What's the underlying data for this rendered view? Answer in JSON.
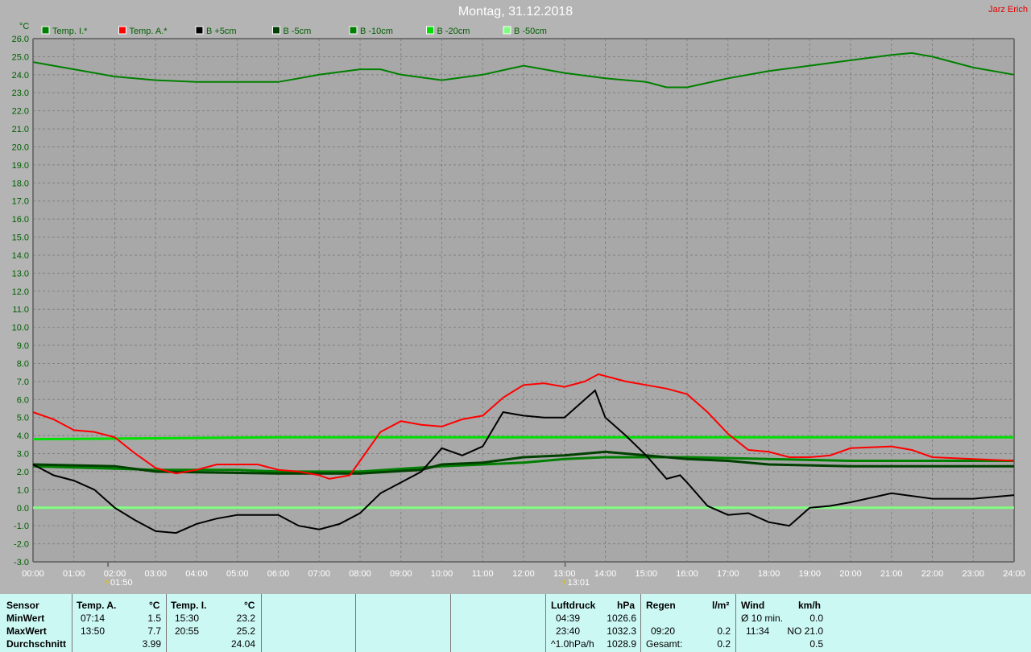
{
  "header": {
    "title": "Montag, 31.12.2018",
    "author": "Jarz Erich"
  },
  "chart_data": {
    "type": "line",
    "ylabel": "°C",
    "ylim": [
      -3,
      26
    ],
    "xlim": [
      "00:00",
      "24:00"
    ],
    "grid": true,
    "legend_position": "top",
    "yticks": [
      "26.0",
      "25.0",
      "24.0",
      "23.0",
      "22.0",
      "21.0",
      "20.0",
      "19.0",
      "18.0",
      "17.0",
      "16.0",
      "15.0",
      "14.0",
      "13.0",
      "12.0",
      "11.0",
      "10.0",
      "9.0",
      "8.0",
      "7.0",
      "6.0",
      "5.0",
      "4.0",
      "3.0",
      "2.0",
      "1.0",
      "0.0",
      "-1.0",
      "-2.0",
      "-3.0"
    ],
    "xticks": [
      "00:00",
      "01:00",
      "02:00",
      "03:00",
      "04:00",
      "05:00",
      "06:00",
      "07:00",
      "08:00",
      "09:00",
      "10:00",
      "11:00",
      "12:00",
      "13:00",
      "14:00",
      "15:00",
      "16:00",
      "17:00",
      "18:00",
      "19:00",
      "20:00",
      "21:00",
      "22:00",
      "23:00",
      "24:00"
    ],
    "markers": [
      {
        "time": "01:50",
        "label": "01:50"
      },
      {
        "time": "13:01",
        "label": "13:01"
      }
    ],
    "series": [
      {
        "name": "Temp. I.*",
        "color": "#008000",
        "x": [
          0,
          1,
          2,
          3,
          4,
          5,
          6,
          7,
          8,
          8.5,
          9,
          10,
          11,
          12,
          13,
          14,
          15,
          15.5,
          16,
          17,
          18,
          19,
          20,
          21,
          21.5,
          22,
          23,
          24
        ],
        "y": [
          24.7,
          24.3,
          23.9,
          23.7,
          23.6,
          23.6,
          23.6,
          24.0,
          24.3,
          24.3,
          24.0,
          23.7,
          24.0,
          24.5,
          24.1,
          23.8,
          23.6,
          23.3,
          23.3,
          23.8,
          24.2,
          24.5,
          24.8,
          25.1,
          25.2,
          25.0,
          24.4,
          24.0
        ]
      },
      {
        "name": "Temp. A.*",
        "color": "#ff0000",
        "x": [
          0,
          0.5,
          1,
          1.5,
          2,
          2.5,
          3,
          3.5,
          4,
          4.5,
          5,
          5.5,
          6,
          6.5,
          7,
          7.25,
          7.75,
          8,
          8.5,
          9,
          9.5,
          10,
          10.5,
          11,
          11.5,
          12,
          12.5,
          13,
          13.5,
          13.83,
          14.5,
          15,
          15.5,
          16,
          16.5,
          17,
          17.5,
          18,
          18.5,
          19,
          19.5,
          20,
          21,
          21.5,
          22,
          23,
          24
        ],
        "y": [
          5.3,
          4.9,
          4.3,
          4.2,
          3.9,
          3.0,
          2.2,
          1.9,
          2.1,
          2.4,
          2.4,
          2.4,
          2.1,
          2.0,
          1.8,
          1.6,
          1.8,
          2.6,
          4.2,
          4.8,
          4.6,
          4.5,
          4.9,
          5.1,
          6.1,
          6.8,
          6.9,
          6.7,
          7.0,
          7.4,
          7.0,
          6.8,
          6.6,
          6.3,
          5.3,
          4.1,
          3.2,
          3.1,
          2.8,
          2.8,
          2.9,
          3.3,
          3.4,
          3.2,
          2.8,
          2.7,
          2.6
        ]
      },
      {
        "name": "B +5cm",
        "color": "#000000",
        "x": [
          0,
          0.5,
          1,
          1.5,
          2,
          2.5,
          3,
          3.5,
          4,
          4.5,
          5,
          6,
          6.5,
          7,
          7.5,
          8,
          8.5,
          9,
          9.5,
          10,
          10.5,
          11,
          11.5,
          12,
          12.5,
          13,
          13.5,
          13.75,
          14,
          14.5,
          15,
          15.5,
          15.83,
          16,
          16.5,
          17,
          17.5,
          18,
          18.5,
          19,
          19.5,
          20,
          21,
          22,
          23,
          24
        ],
        "y": [
          2.4,
          1.8,
          1.5,
          1.0,
          0.0,
          -0.7,
          -1.3,
          -1.4,
          -0.9,
          -0.6,
          -0.4,
          -0.4,
          -1.0,
          -1.2,
          -0.9,
          -0.3,
          0.8,
          1.4,
          2.0,
          3.3,
          2.9,
          3.4,
          5.3,
          5.1,
          5.0,
          5.0,
          6.0,
          6.5,
          5.0,
          4.0,
          2.9,
          1.6,
          1.8,
          1.4,
          0.1,
          -0.4,
          -0.3,
          -0.8,
          -1.0,
          0.0,
          0.1,
          0.3,
          0.8,
          0.5,
          0.5,
          0.7
        ]
      },
      {
        "name": "B -5cm",
        "color": "#004000",
        "x": [
          0,
          2,
          3,
          6,
          8,
          9.5,
          10,
          11,
          12,
          13,
          14,
          15,
          16,
          17,
          18,
          20,
          24
        ],
        "y": [
          2.4,
          2.3,
          2.0,
          1.9,
          1.9,
          2.1,
          2.4,
          2.5,
          2.8,
          2.9,
          3.1,
          2.9,
          2.7,
          2.6,
          2.4,
          2.3,
          2.3
        ]
      },
      {
        "name": "B -10cm",
        "color": "#008000",
        "x": [
          0,
          3,
          5,
          6,
          8,
          10,
          12,
          13,
          14,
          16,
          18,
          20,
          24
        ],
        "y": [
          2.3,
          2.1,
          2.1,
          2.0,
          2.0,
          2.3,
          2.5,
          2.7,
          2.8,
          2.8,
          2.7,
          2.6,
          2.6
        ]
      },
      {
        "name": "B -20cm",
        "color": "#00e000",
        "x": [
          0,
          6,
          24
        ],
        "y": [
          3.8,
          3.9,
          3.9
        ]
      },
      {
        "name": "B -50cm",
        "color": "#80ff80",
        "x": [
          0,
          24
        ],
        "y": [
          0.0,
          0.0
        ]
      }
    ]
  },
  "table": {
    "temp": {
      "rows": [
        "Sensor",
        "MinWert",
        "MaxWert",
        "Durchschnitt"
      ],
      "a_head": "Temp. A.",
      "a_unit": "°C",
      "a_min_t": "07:14",
      "a_min": "1.5",
      "a_max_t": "13:50",
      "a_max": "7.7",
      "a_avg": "3.99",
      "i_head": "Temp. I.",
      "i_unit": "°C",
      "i_min_t": "15:30",
      "i_min": "23.2",
      "i_max_t": "20:55",
      "i_max": "25.2",
      "i_avg": "24.04"
    },
    "pressure": {
      "head": "Luftdruck",
      "unit": "hPa",
      "min_t": "04:39",
      "min": "1026.6",
      "max_t": "23:40",
      "max": "1032.3",
      "trend": "^1.0hPa/h",
      "avg": "1028.9"
    },
    "rain": {
      "head": "Regen",
      "unit": "l/m²",
      "max_t": "09:20",
      "max": "0.2",
      "total_label": "Gesamt:",
      "total": "0.2"
    },
    "wind": {
      "head": "Wind",
      "unit": "km/h",
      "avg_label": "Ø 10 min.",
      "avg": "0.0",
      "max_t": "11:34",
      "max": "NO 21.0",
      "mean": "0.5"
    }
  }
}
